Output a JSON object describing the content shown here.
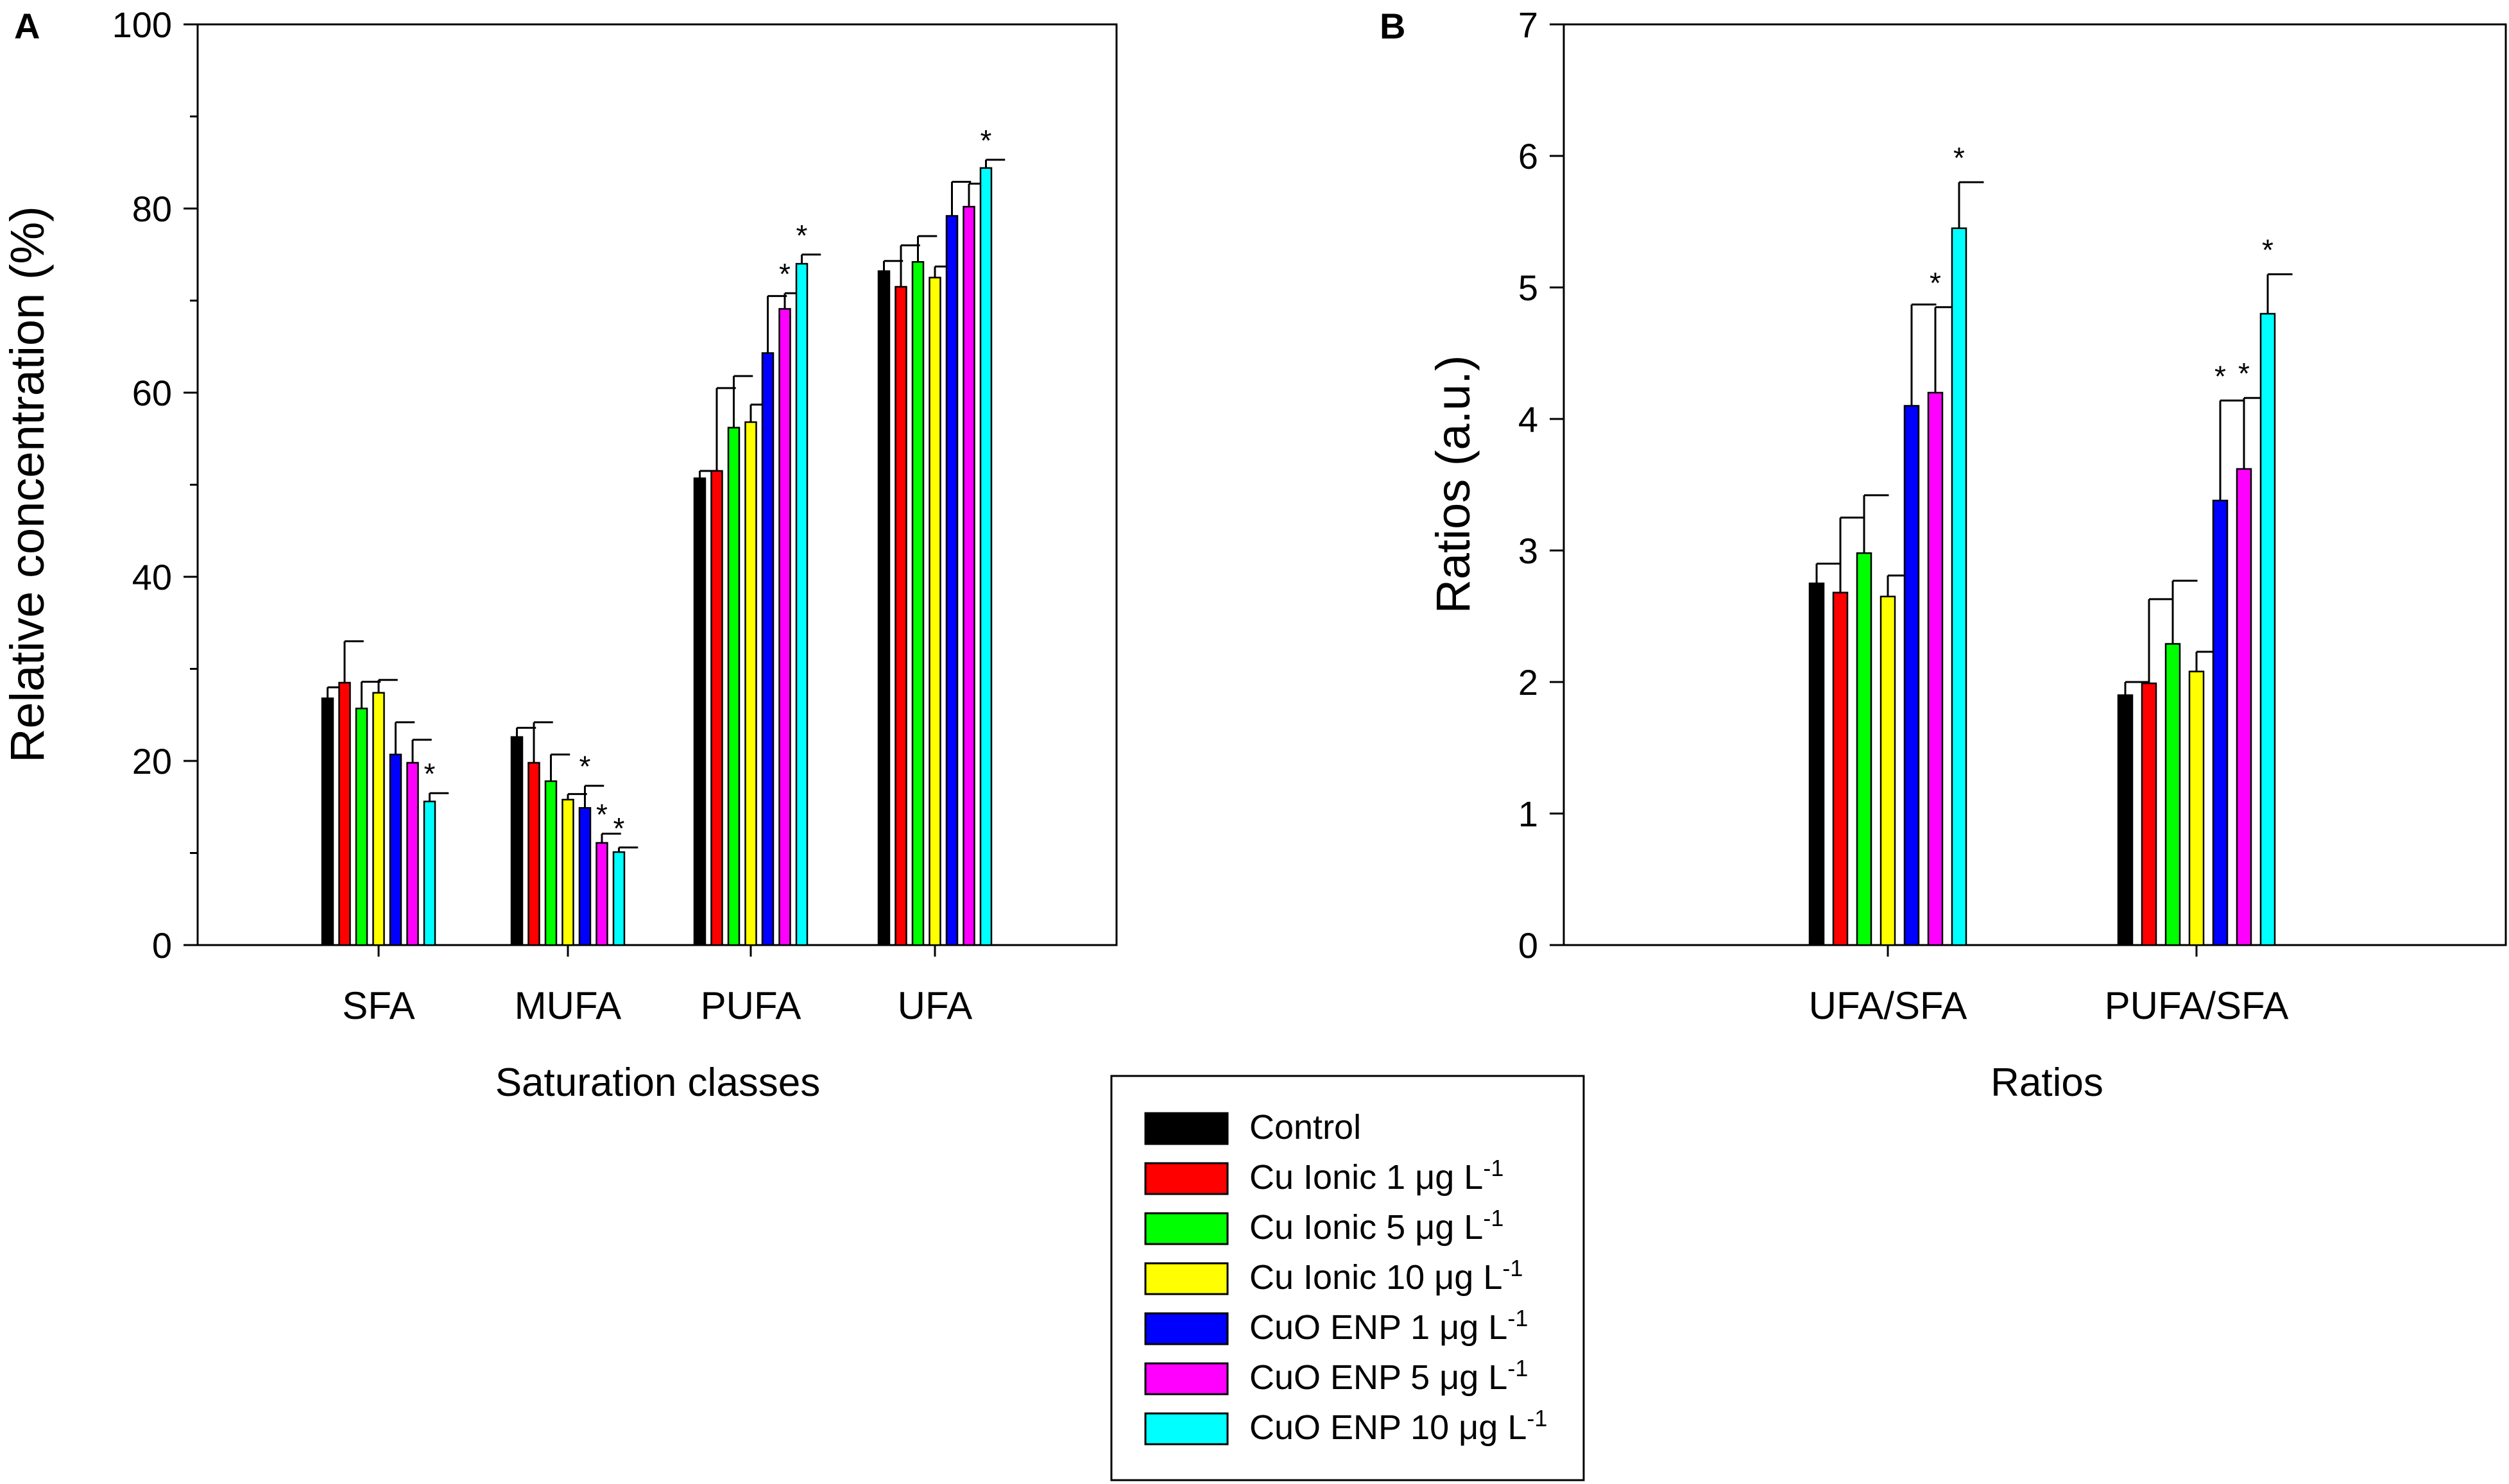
{
  "panels": {
    "a": {
      "letter": "A"
    },
    "b": {
      "letter": "B"
    }
  },
  "legend": {
    "items": [
      {
        "label": "Control",
        "unit": "",
        "sup": "",
        "color": "#000000"
      },
      {
        "label": "Cu Ionic 1 ",
        "unit": "μg L",
        "sup": "-1",
        "color": "#ff0000"
      },
      {
        "label": "Cu Ionic 5 ",
        "unit": "μg L",
        "sup": "-1",
        "color": "#00ff00"
      },
      {
        "label": "Cu Ionic 10 ",
        "unit": "μg L",
        "sup": "-1",
        "color": "#ffff00"
      },
      {
        "label": "CuO ENP 1 ",
        "unit": "μg L",
        "sup": "-1",
        "color": "#0000ff"
      },
      {
        "label": "CuO ENP 5 ",
        "unit": "μg L",
        "sup": "-1",
        "color": "#ff00ff"
      },
      {
        "label": "CuO ENP 10 ",
        "unit": "μg L",
        "sup": "-1",
        "color": "#00ffff"
      }
    ]
  },
  "chart_data": [
    {
      "panel": "A",
      "type": "bar",
      "title": "",
      "xlabel": "Saturation classes",
      "ylabel": "Relative concentration (%)",
      "ylim": [
        0,
        100
      ],
      "yticks": [
        "0",
        "20",
        "40",
        "60",
        "80",
        "100"
      ],
      "grid": false,
      "categories": [
        "SFA",
        "MUFA",
        "PUFA",
        "UFA"
      ],
      "series": [
        {
          "name": "Control",
          "values": [
            26.8,
            22.6,
            50.7,
            73.2
          ],
          "errors": [
            1.2,
            1.0,
            0.8,
            1.1
          ],
          "stars": [
            "",
            "",
            "",
            ""
          ]
        },
        {
          "name": "Cu Ionic 1 μg L-1",
          "values": [
            28.5,
            19.8,
            51.5,
            71.5
          ],
          "errors": [
            4.5,
            4.4,
            9.0,
            4.5
          ],
          "stars": [
            "",
            "",
            "",
            ""
          ]
        },
        {
          "name": "Cu Ionic 5 μg L-1",
          "values": [
            25.7,
            17.8,
            56.2,
            74.2
          ],
          "errors": [
            2.9,
            2.9,
            5.6,
            2.8
          ],
          "stars": [
            "",
            "",
            "",
            ""
          ]
        },
        {
          "name": "Cu Ionic 10 μg L-1",
          "values": [
            27.4,
            15.8,
            56.8,
            72.5
          ],
          "errors": [
            1.4,
            0.6,
            1.9,
            1.2
          ],
          "stars": [
            "",
            "",
            "",
            ""
          ]
        },
        {
          "name": "CuO ENP 1 μg L-1",
          "values": [
            20.7,
            14.9,
            64.3,
            79.2
          ],
          "errors": [
            3.5,
            2.4,
            6.2,
            3.7
          ],
          "stars": [
            "",
            "*",
            "",
            ""
          ]
        },
        {
          "name": "CuO ENP 5 μg L-1",
          "values": [
            19.8,
            11.1,
            69.1,
            80.2
          ],
          "errors": [
            2.5,
            1.0,
            1.7,
            2.5
          ],
          "stars": [
            "",
            "*",
            "*",
            ""
          ]
        },
        {
          "name": "CuO ENP 10 μg L-1",
          "values": [
            15.6,
            10.1,
            74.0,
            84.4
          ],
          "errors": [
            0.9,
            0.5,
            1.0,
            0.9
          ],
          "stars": [
            "*",
            "*",
            "*",
            "*"
          ]
        }
      ]
    },
    {
      "panel": "B",
      "type": "bar",
      "title": "",
      "xlabel": "Ratios",
      "ylabel": "Ratios (a.u.)",
      "ylim": [
        0,
        7
      ],
      "yticks": [
        "0",
        "1",
        "2",
        "3",
        "4",
        "5",
        "6",
        "7"
      ],
      "grid": false,
      "categories": [
        "UFA/SFA",
        "PUFA/SFA"
      ],
      "series": [
        {
          "name": "Control",
          "values": [
            2.75,
            1.9
          ],
          "errors": [
            0.15,
            0.1
          ],
          "stars": [
            "",
            ""
          ]
        },
        {
          "name": "Cu Ionic 1 μg L-1",
          "values": [
            2.68,
            1.99
          ],
          "errors": [
            0.57,
            0.64
          ],
          "stars": [
            "",
            ""
          ]
        },
        {
          "name": "Cu Ionic 5 μg L-1",
          "values": [
            2.98,
            2.29
          ],
          "errors": [
            0.44,
            0.48
          ],
          "stars": [
            "",
            ""
          ]
        },
        {
          "name": "Cu Ionic 10 μg L-1",
          "values": [
            2.65,
            2.08
          ],
          "errors": [
            0.16,
            0.15
          ],
          "stars": [
            "",
            ""
          ]
        },
        {
          "name": "CuO ENP 1 μg L-1",
          "values": [
            4.1,
            3.38
          ],
          "errors": [
            0.77,
            0.76
          ],
          "stars": [
            "",
            "*"
          ]
        },
        {
          "name": "CuO ENP 5 μg L-1",
          "values": [
            4.2,
            3.62
          ],
          "errors": [
            0.65,
            0.54
          ],
          "stars": [
            "*",
            "*"
          ]
        },
        {
          "name": "CuO ENP 10 μg L-1",
          "values": [
            5.45,
            4.8
          ],
          "errors": [
            0.35,
            0.3
          ],
          "stars": [
            "*",
            "*"
          ]
        }
      ]
    }
  ]
}
